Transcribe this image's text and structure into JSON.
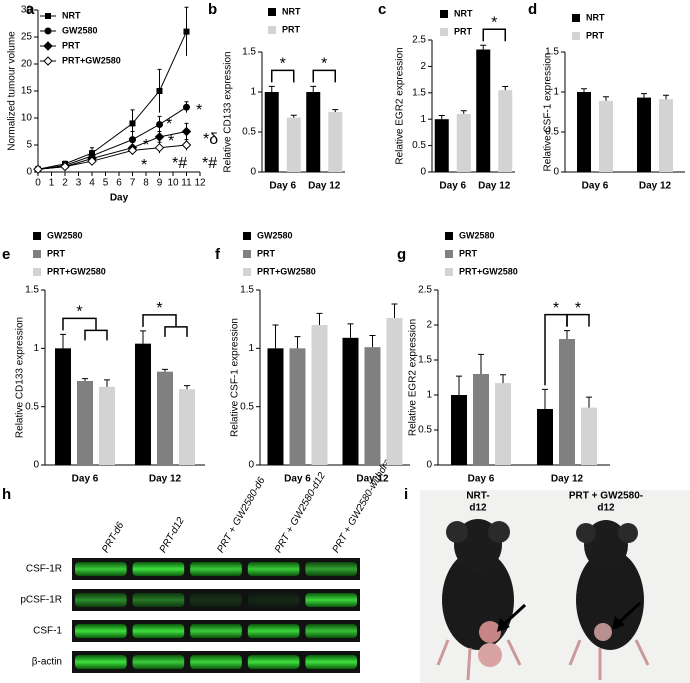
{
  "chart_data": [
    {
      "type": "line",
      "label": "a",
      "x_label": "Day",
      "y_label": "Normalized tumour volume",
      "x": [
        0,
        2,
        4,
        7,
        9,
        11
      ],
      "xlim": [
        0,
        12
      ],
      "xticks": [
        0,
        1,
        2,
        3,
        4,
        5,
        6,
        7,
        8,
        9,
        10,
        11,
        12
      ],
      "ylim": [
        0,
        30
      ],
      "yticks": [
        0,
        5,
        10,
        15,
        20,
        25,
        30
      ],
      "series": [
        {
          "name": "NRT",
          "color": "#000000",
          "marker": "square",
          "values": [
            0.5,
            1.5,
            3.5,
            9,
            15,
            26
          ],
          "errors": [
            0.3,
            0.5,
            1,
            2.5,
            4,
            4.5
          ]
        },
        {
          "name": "GW2580",
          "color": "#000000",
          "marker": "circle",
          "values": [
            0.5,
            1.2,
            3,
            6,
            8.8,
            12
          ],
          "errors": [
            0.2,
            0.4,
            0.8,
            1.5,
            1.5,
            1
          ]
        },
        {
          "name": "PRT",
          "color": "#000000",
          "marker": "diamond",
          "values": [
            0.5,
            1,
            2.5,
            4.5,
            6.5,
            7.5
          ],
          "errors": [
            0.2,
            0.3,
            0.5,
            1,
            1,
            1.5
          ]
        },
        {
          "name": "PRT+GW2580",
          "color": "#000000",
          "marker": "open-diamond",
          "values": [
            0.5,
            1,
            2,
            4,
            4.5,
            5
          ],
          "errors": [
            0.2,
            0.3,
            0.5,
            0.8,
            1,
            1
          ]
        }
      ],
      "annotations": [
        "*",
        "*",
        "*",
        "*",
        "*#",
        "*",
        "*δ",
        "*#"
      ]
    },
    {
      "type": "bar",
      "label": "b",
      "y_label": "Relative CD133 expression",
      "categories": [
        "Day 6",
        "Day 12"
      ],
      "ylim": [
        0,
        1.5
      ],
      "yticks": [
        0,
        0.5,
        1,
        1.5
      ],
      "series": [
        {
          "name": "NRT",
          "color": "#000000",
          "values": [
            1,
            1
          ],
          "errors": [
            0.07,
            0.07
          ]
        },
        {
          "name": "PRT",
          "color": "#d3d3d3",
          "values": [
            0.68,
            0.75
          ],
          "errors": [
            0.03,
            0.03
          ]
        }
      ],
      "annotations": [
        "*",
        "*"
      ]
    },
    {
      "type": "bar",
      "label": "c",
      "y_label": "Relative EGR2 expression",
      "categories": [
        "Day 6",
        "Day 12"
      ],
      "ylim": [
        0,
        2.5
      ],
      "yticks": [
        0,
        0.5,
        1,
        1.5,
        2,
        2.5
      ],
      "series": [
        {
          "name": "NRT",
          "color": "#000000",
          "values": [
            1,
            2.32
          ],
          "errors": [
            0.07,
            0.08
          ]
        },
        {
          "name": "PRT",
          "color": "#d3d3d3",
          "values": [
            1.1,
            1.55
          ],
          "errors": [
            0.06,
            0.07
          ]
        }
      ],
      "annotations": [
        "*"
      ]
    },
    {
      "type": "bar",
      "label": "d",
      "y_label": "Relative CSF-1 expression",
      "categories": [
        "Day 6",
        "Day 12"
      ],
      "ylim": [
        0,
        1.5
      ],
      "yticks": [
        0,
        0.5,
        1,
        1.5
      ],
      "series": [
        {
          "name": "NRT",
          "color": "#000000",
          "values": [
            1,
            0.93
          ],
          "errors": [
            0.04,
            0.05
          ]
        },
        {
          "name": "PRT",
          "color": "#d3d3d3",
          "values": [
            0.89,
            0.91
          ],
          "errors": [
            0.05,
            0.05
          ]
        }
      ],
      "annotations": []
    },
    {
      "type": "bar",
      "label": "e",
      "y_label": "Relative CD133 expression",
      "categories": [
        "Day 6",
        "Day 12"
      ],
      "ylim": [
        0,
        1.5
      ],
      "yticks": [
        0,
        0.5,
        1,
        1.5
      ],
      "series": [
        {
          "name": "GW2580",
          "color": "#000000",
          "values": [
            1,
            1.04
          ],
          "errors": [
            0.12,
            0.11
          ]
        },
        {
          "name": "PRT",
          "color": "#808080",
          "values": [
            0.72,
            0.8
          ],
          "errors": [
            0.02,
            0.02
          ]
        },
        {
          "name": "PRT+GW2580",
          "color": "#d3d3d3",
          "values": [
            0.67,
            0.65
          ],
          "errors": [
            0.06,
            0.03
          ]
        }
      ],
      "annotations": [
        "*",
        "*"
      ]
    },
    {
      "type": "bar",
      "label": "f",
      "y_label": "Relative CSF-1 expression",
      "categories": [
        "Day 6",
        "Day 12"
      ],
      "ylim": [
        0,
        1.5
      ],
      "yticks": [
        0,
        0.5,
        1,
        1.5
      ],
      "series": [
        {
          "name": "GW2580",
          "color": "#000000",
          "values": [
            1,
            1.09
          ],
          "errors": [
            0.2,
            0.12
          ]
        },
        {
          "name": "PRT",
          "color": "#808080",
          "values": [
            1,
            1.01
          ],
          "errors": [
            0.1,
            0.1
          ]
        },
        {
          "name": "PRT+GW2580",
          "color": "#d3d3d3",
          "values": [
            1.2,
            1.26
          ],
          "errors": [
            0.1,
            0.12
          ]
        }
      ],
      "annotations": []
    },
    {
      "type": "bar",
      "label": "g",
      "y_label": "Relative EGR2 expression",
      "categories": [
        "Day 6",
        "Day 12"
      ],
      "ylim": [
        0,
        2.5
      ],
      "yticks": [
        0,
        0.5,
        1,
        1.5,
        2,
        2.5
      ],
      "series": [
        {
          "name": "GW2580",
          "color": "#000000",
          "values": [
            1,
            0.8
          ],
          "errors": [
            0.27,
            0.28
          ]
        },
        {
          "name": "PRT",
          "color": "#808080",
          "values": [
            1.3,
            1.8
          ],
          "errors": [
            0.28,
            0.12
          ]
        },
        {
          "name": "PRT+GW2580",
          "color": "#d3d3d3",
          "values": [
            1.17,
            0.82
          ],
          "errors": [
            0.12,
            0.15
          ]
        }
      ],
      "annotations": [
        "*",
        "*"
      ]
    }
  ],
  "blot": {
    "label": "h",
    "lanes": [
      "PRT-d6",
      "PRT-d12",
      "PRT + GW2580-d6",
      "PRT + GW2580-d12",
      "PRT + GW2580-withdrawal"
    ],
    "rows": [
      "CSF-1R",
      "pCSF-1R",
      "CSF-1",
      "β-actin"
    ]
  },
  "photo": {
    "label": "i",
    "captions": [
      [
        "NRT-",
        "d12"
      ],
      [
        "PRT + GW2580-",
        "d12"
      ]
    ]
  }
}
